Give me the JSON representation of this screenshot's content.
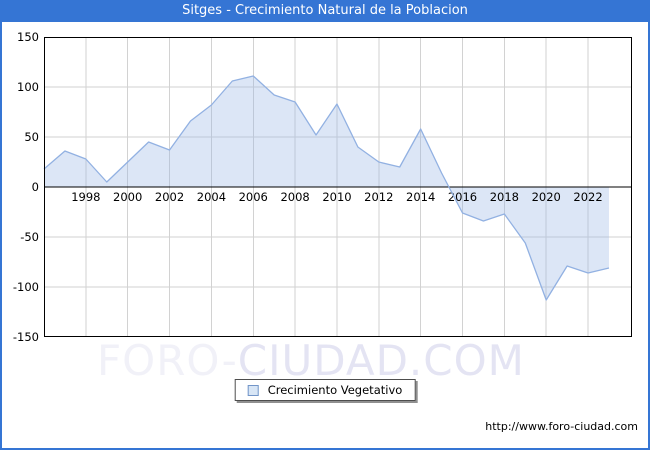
{
  "title_bar": {
    "title": "Sitges - Crecimiento Natural de la Poblacion",
    "bg_color": "#3575d4",
    "text_color": "#ffffff"
  },
  "chart_data": {
    "type": "area",
    "title": "Sitges - Crecimiento Natural de la Poblacion",
    "xlabel": "",
    "ylabel": "",
    "x": [
      1996,
      1997,
      1998,
      1999,
      2000,
      2001,
      2002,
      2003,
      2004,
      2005,
      2006,
      2007,
      2008,
      2009,
      2010,
      2011,
      2012,
      2013,
      2014,
      2015,
      2016,
      2017,
      2018,
      2019,
      2020,
      2021,
      2022,
      2023
    ],
    "series": [
      {
        "name": "Crecimiento Vegetativo",
        "values": [
          18,
          36,
          28,
          5,
          25,
          45,
          37,
          66,
          82,
          106,
          111,
          92,
          85,
          52,
          83,
          40,
          25,
          20,
          58,
          14,
          -26,
          -34,
          -27,
          -56,
          -113,
          -79,
          -86,
          -81
        ]
      }
    ],
    "xlim": [
      1996,
      2024.1
    ],
    "ylim": [
      -150,
      150
    ],
    "xticks": [
      1998,
      2000,
      2002,
      2004,
      2006,
      2008,
      2010,
      2012,
      2014,
      2016,
      2018,
      2020,
      2022
    ],
    "yticks": [
      -150,
      -100,
      -50,
      0,
      50,
      100,
      150
    ],
    "grid": true,
    "fill_to_zero": true,
    "legend_position": "bottom-center",
    "colors": {
      "line": "#92b1e2",
      "fill": "#9ab6e4",
      "fill_opacity": 0.35,
      "grid": "#d2d2d2",
      "axis": "#000000",
      "tick_text": "#000000"
    }
  },
  "legend": {
    "label": "Crecimiento Vegetativo"
  },
  "watermark": {
    "part1": "FORO-",
    "part2": "CIUDAD.COM",
    "full_text": "FORO-CIUDAD.COM"
  },
  "footer": {
    "url": "http://www.foro-ciudad.com"
  }
}
